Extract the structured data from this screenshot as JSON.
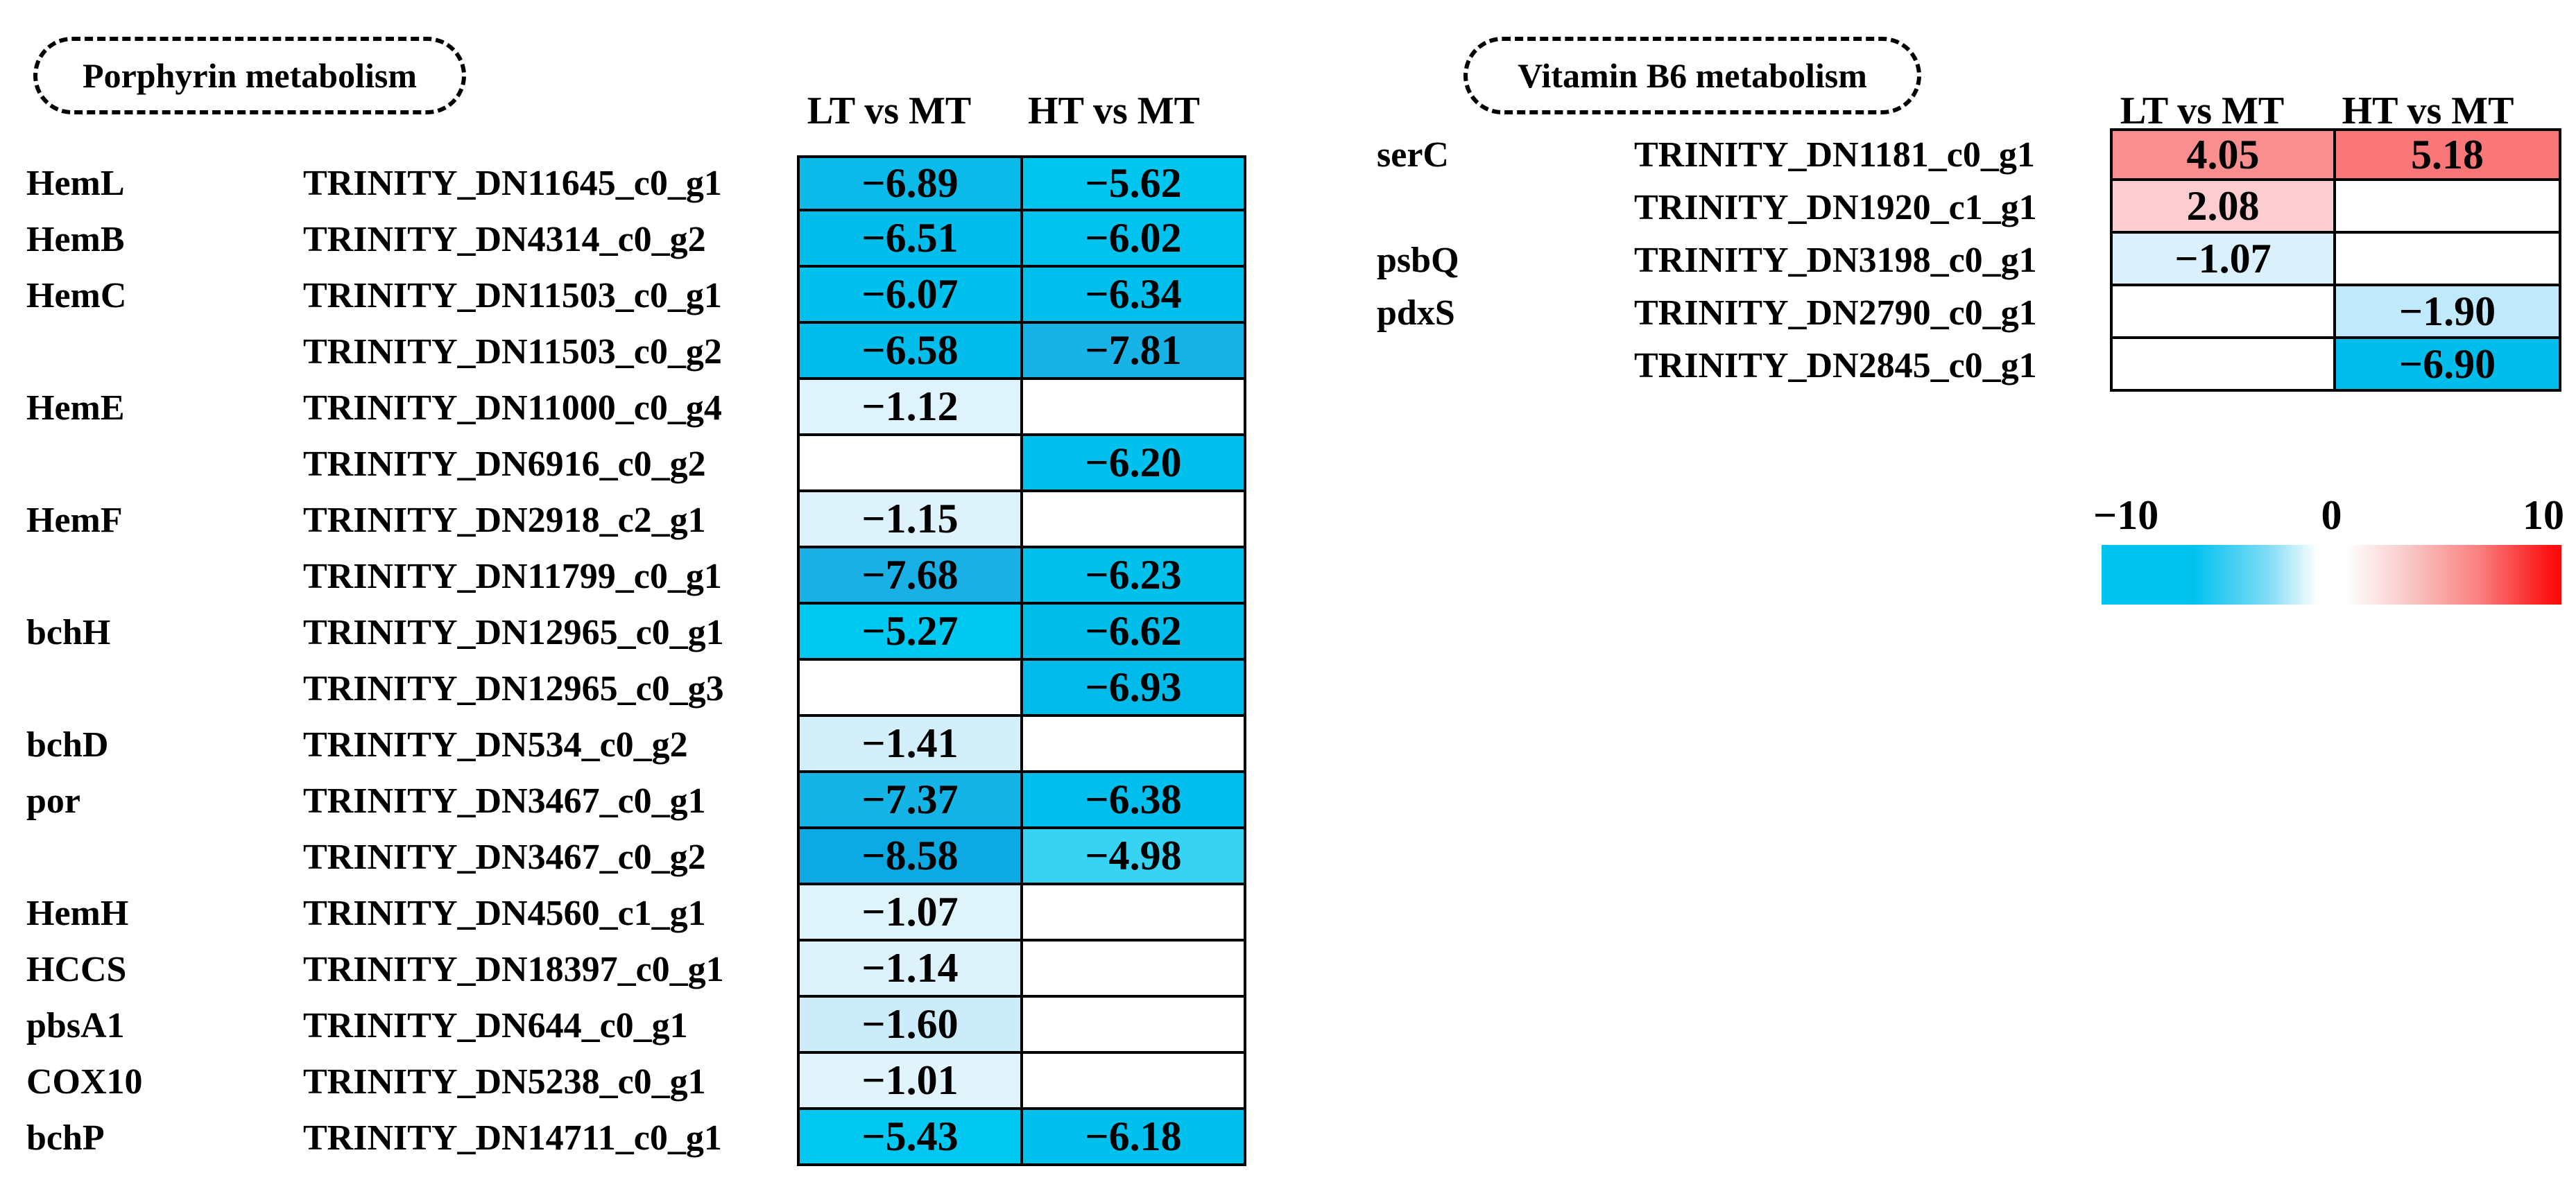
{
  "chart_data": [
    {
      "type": "heatmap",
      "title": "Porphyrin metabolism",
      "columns": [
        "LT vs MT",
        "HT vs MT"
      ],
      "value_range": [
        -10,
        10
      ],
      "rows": [
        {
          "gene": "HemL",
          "transcript": "TRINITY_DN11645_c0_g1",
          "values": [
            -6.89,
            -5.62
          ],
          "labels": [
            "−6.89",
            "−5.62"
          ],
          "colors": [
            "#0bbae8",
            "#00c5ef"
          ]
        },
        {
          "gene": "HemB",
          "transcript": "TRINITY_DN4314_c0_g2",
          "values": [
            -6.51,
            -6.02
          ],
          "labels": [
            "−6.51",
            "−6.02"
          ],
          "colors": [
            "#00bdeb",
            "#00c2ee"
          ]
        },
        {
          "gene": "HemC",
          "transcript": "TRINITY_DN11503_c0_g1",
          "values": [
            -6.07,
            -6.34
          ],
          "labels": [
            "−6.07",
            "−6.34"
          ],
          "colors": [
            "#00c1ed",
            "#00bfec"
          ]
        },
        {
          "gene": "",
          "transcript": "TRINITY_DN11503_c0_g2",
          "values": [
            -6.58,
            -7.81
          ],
          "labels": [
            "−6.58",
            "−7.81"
          ],
          "colors": [
            "#00bdeb",
            "#17b2e6"
          ]
        },
        {
          "gene": "HemE",
          "transcript": "TRINITY_DN11000_c0_g4",
          "values": [
            -1.12,
            null
          ],
          "labels": [
            "−1.12",
            null
          ],
          "colors": [
            "#def3fb",
            null
          ]
        },
        {
          "gene": "",
          "transcript": "TRINITY_DN6916_c0_g2",
          "values": [
            null,
            -6.2
          ],
          "labels": [
            null,
            "−6.20"
          ],
          "colors": [
            null,
            "#00c0ed"
          ]
        },
        {
          "gene": "HemF",
          "transcript": "TRINITY_DN2918_c2_g1",
          "values": [
            -1.15,
            null
          ],
          "labels": [
            "−1.15",
            null
          ],
          "colors": [
            "#ddf2fb",
            null
          ]
        },
        {
          "gene": "",
          "transcript": "TRINITY_DN11799_c0_g1",
          "values": [
            -7.68,
            -6.23
          ],
          "labels": [
            "−7.68",
            "−6.23"
          ],
          "colors": [
            "#19b0e5",
            "#00c0ec"
          ]
        },
        {
          "gene": "bchH",
          "transcript": "TRINITY_DN12965_c0_g1",
          "values": [
            -5.27,
            -6.62
          ],
          "labels": [
            "−5.27",
            "−6.62"
          ],
          "colors": [
            "#00c9f1",
            "#00bdea"
          ]
        },
        {
          "gene": "",
          "transcript": "TRINITY_DN12965_c0_g3",
          "values": [
            null,
            -6.93
          ],
          "labels": [
            null,
            "−6.93"
          ],
          "colors": [
            null,
            "#00bbe9"
          ]
        },
        {
          "gene": "bchD",
          "transcript": "TRINITY_DN534_c0_g2",
          "values": [
            -1.41,
            null
          ],
          "labels": [
            "−1.41",
            null
          ],
          "colors": [
            "#d3effa",
            null
          ]
        },
        {
          "gene": "por",
          "transcript": "TRINITY_DN3467_c0_g1",
          "values": [
            -7.37,
            -6.38
          ],
          "labels": [
            "−7.37",
            "−6.38"
          ],
          "colors": [
            "#15b4e7",
            "#00bfec"
          ]
        },
        {
          "gene": "",
          "transcript": "TRINITY_DN3467_c0_g2",
          "values": [
            -8.58,
            -4.98
          ],
          "labels": [
            "−8.58",
            "−4.98"
          ],
          "colors": [
            "#0ca9e2",
            "#38d3f3"
          ]
        },
        {
          "gene": "HemH",
          "transcript": "TRINITY_DN4560_c1_g1",
          "values": [
            -1.07,
            null
          ],
          "labels": [
            "−1.07",
            null
          ],
          "colors": [
            "#dff3fb",
            null
          ]
        },
        {
          "gene": "HCCS",
          "transcript": "TRINITY_DN18397_c0_g1",
          "values": [
            -1.14,
            null
          ],
          "labels": [
            "−1.14",
            null
          ],
          "colors": [
            "#ddf2fb",
            null
          ]
        },
        {
          "gene": "pbsA1",
          "transcript": "TRINITY_DN644_c0_g1",
          "values": [
            -1.6,
            null
          ],
          "labels": [
            "−1.60",
            null
          ],
          "colors": [
            "#cdecf9",
            null
          ]
        },
        {
          "gene": "COX10",
          "transcript": "TRINITY_DN5238_c0_g1",
          "values": [
            -1.01,
            null
          ],
          "labels": [
            "−1.01",
            null
          ],
          "colors": [
            "#e1f4fc",
            null
          ]
        },
        {
          "gene": "bchP",
          "transcript": "TRINITY_DN14711_c0_g1",
          "values": [
            -5.43,
            -6.18
          ],
          "labels": [
            "−5.43",
            "−6.18"
          ],
          "colors": [
            "#00c8f0",
            "#00c1ed"
          ]
        }
      ]
    },
    {
      "type": "heatmap",
      "title": "Vitamin B6 metabolism",
      "columns": [
        "LT vs MT",
        "HT vs MT"
      ],
      "value_range": [
        -10,
        10
      ],
      "rows": [
        {
          "gene": "serC",
          "transcript": "TRINITY_DN1181_c0_g1",
          "values": [
            4.05,
            5.18
          ],
          "labels": [
            "4.05",
            "5.18"
          ],
          "colors": [
            "#f98e90",
            "#f97779"
          ]
        },
        {
          "gene": "",
          "transcript": "TRINITY_DN1920_c1_g1",
          "values": [
            2.08,
            null
          ],
          "labels": [
            "2.08",
            null
          ],
          "colors": [
            "#fbcdd1",
            null
          ]
        },
        {
          "gene": "psbQ",
          "transcript": "TRINITY_DN3198_c0_g1",
          "values": [
            -1.07,
            null
          ],
          "labels": [
            "−1.07",
            null
          ],
          "colors": [
            "#daf1fb",
            null
          ]
        },
        {
          "gene": "pdxS",
          "transcript": "TRINITY_DN2790_c0_g1",
          "values": [
            null,
            -1.9
          ],
          "labels": [
            null,
            "−1.90"
          ],
          "colors": [
            null,
            "#c0eafc"
          ]
        },
        {
          "gene": "",
          "transcript": "TRINITY_DN2845_c0_g1",
          "values": [
            null,
            -6.9
          ],
          "labels": [
            null,
            "−6.90"
          ],
          "colors": [
            null,
            "#00bdeb"
          ]
        }
      ]
    }
  ],
  "legend": {
    "ticks": [
      "−10",
      "0",
      "10"
    ],
    "range": [
      -10,
      10
    ],
    "gradient_css_stops": [
      "#00c2ef 0%",
      "#00c2ef 20%",
      "#7edbf5 36%",
      "#ffffff 47%",
      "#ffffff 53%",
      "#f9cbcb 66%",
      "#fa8080 82%",
      "#fb1515 97%",
      "#fb0a0a 100%"
    ]
  }
}
